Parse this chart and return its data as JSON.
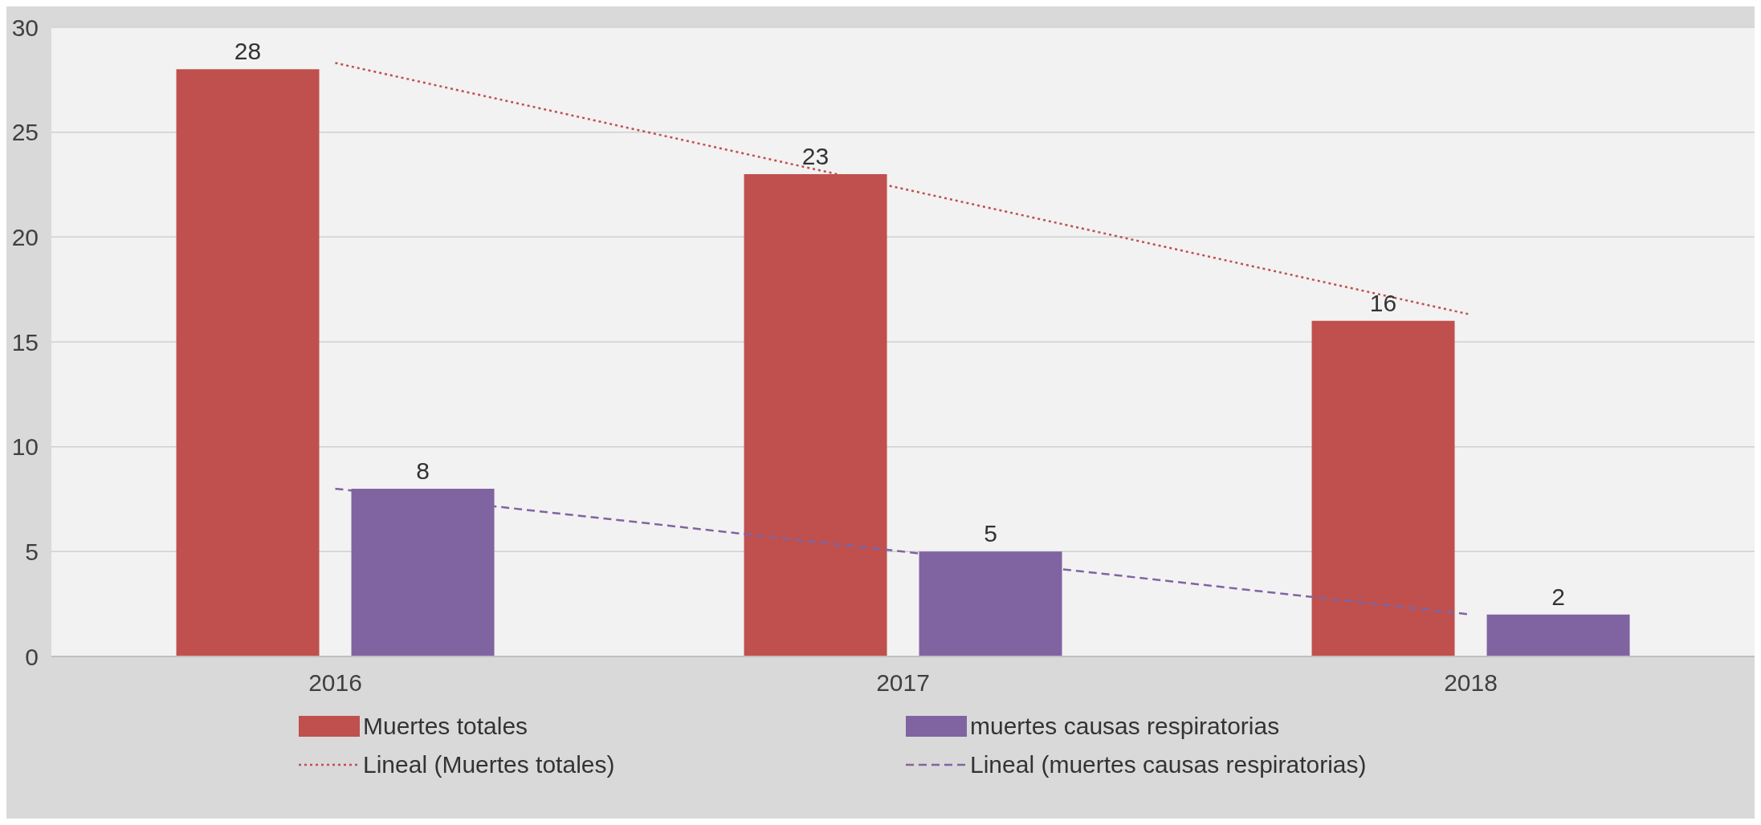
{
  "chart_data": {
    "type": "bar",
    "categories": [
      "2016",
      "2017",
      "2018"
    ],
    "series": [
      {
        "name": "Muertes totales",
        "color": "#c0504d",
        "values": [
          28,
          23,
          16
        ],
        "value_labels": [
          "28",
          "23",
          "16"
        ]
      },
      {
        "name": "muertes causas respiratorias",
        "color": "#8064a2",
        "values": [
          8,
          5,
          2
        ],
        "value_labels": [
          "8",
          "5",
          "2"
        ]
      },
      {
        "name": "Lineal (Muertes totales)",
        "type": "line",
        "color": "#c0504d",
        "line_style": "dotted",
        "values": [
          28.3,
          22.3,
          16.3
        ]
      },
      {
        "name": "Lineal (muertes causas respiratorias)",
        "type": "line",
        "color": "#8064a2",
        "line_style": "dashed",
        "values": [
          8,
          5,
          2
        ]
      }
    ],
    "ylim": [
      0,
      30
    ],
    "yticks": [
      0,
      5,
      10,
      15,
      20,
      25,
      30
    ],
    "grid": "y",
    "legend": "bottom"
  }
}
